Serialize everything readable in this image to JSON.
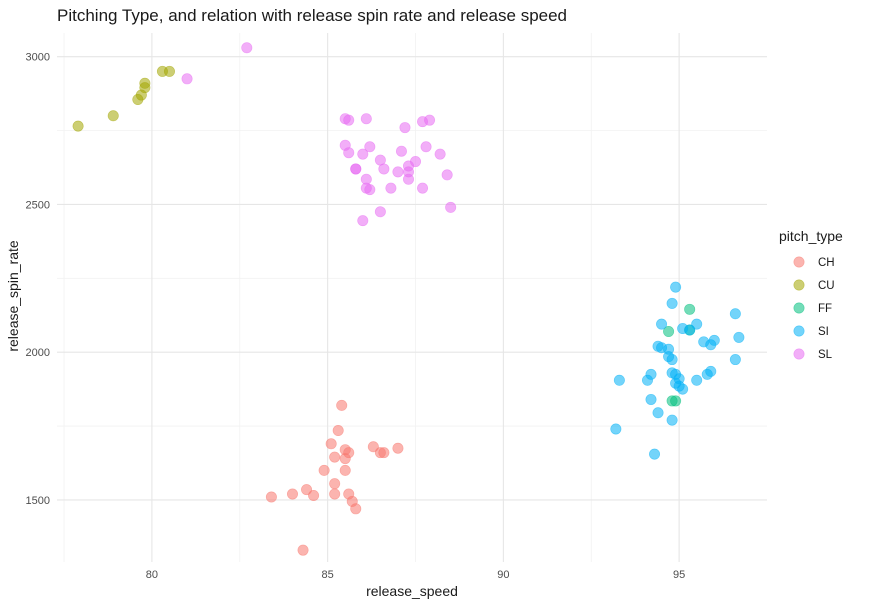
{
  "chart_data": {
    "type": "scatter",
    "title": "Pitching Type, and relation with release spin rate and release speed",
    "xlabel": "release_speed",
    "ylabel": "release_spin_rate",
    "xlim": [
      77.3,
      97.5
    ],
    "ylim": [
      1290,
      3080
    ],
    "x_ticks": [
      80,
      85,
      90,
      95
    ],
    "y_ticks": [
      1500,
      2000,
      2500,
      3000
    ],
    "grid": true,
    "legend": {
      "title": "pitch_type",
      "position": "right"
    },
    "series": [
      {
        "name": "CH",
        "color": "#F8766D",
        "points": [
          [
            85.4,
            1820
          ],
          [
            85.3,
            1735
          ],
          [
            85.1,
            1690
          ],
          [
            85.5,
            1670
          ],
          [
            85.6,
            1660
          ],
          [
            85.2,
            1645
          ],
          [
            85.5,
            1640
          ],
          [
            85.5,
            1600
          ],
          [
            84.9,
            1600
          ],
          [
            86.3,
            1680
          ],
          [
            86.5,
            1660
          ],
          [
            86.6,
            1660
          ],
          [
            87.0,
            1675
          ],
          [
            85.2,
            1555
          ],
          [
            85.2,
            1520
          ],
          [
            85.6,
            1520
          ],
          [
            84.4,
            1535
          ],
          [
            84.6,
            1515
          ],
          [
            84.0,
            1520
          ],
          [
            83.4,
            1510
          ],
          [
            85.7,
            1495
          ],
          [
            85.8,
            1470
          ],
          [
            84.3,
            1330
          ]
        ]
      },
      {
        "name": "CU",
        "color": "#A3A500",
        "points": [
          [
            77.9,
            2765
          ],
          [
            78.9,
            2800
          ],
          [
            79.6,
            2855
          ],
          [
            79.7,
            2870
          ],
          [
            79.8,
            2895
          ],
          [
            79.8,
            2910
          ],
          [
            80.3,
            2950
          ],
          [
            80.5,
            2950
          ]
        ]
      },
      {
        "name": "FF",
        "color": "#00BF7D",
        "points": [
          [
            95.3,
            2145
          ],
          [
            95.3,
            2075
          ],
          [
            94.7,
            2070
          ],
          [
            94.9,
            1835
          ],
          [
            94.8,
            1835
          ]
        ]
      },
      {
        "name": "SI",
        "color": "#00B0F6",
        "points": [
          [
            94.9,
            2220
          ],
          [
            94.8,
            2165
          ],
          [
            94.5,
            2095
          ],
          [
            95.1,
            2080
          ],
          [
            95.3,
            2075
          ],
          [
            95.5,
            2095
          ],
          [
            95.7,
            2035
          ],
          [
            96.0,
            2040
          ],
          [
            96.6,
            2130
          ],
          [
            96.7,
            2050
          ],
          [
            96.6,
            1975
          ],
          [
            95.9,
            2025
          ],
          [
            95.9,
            1935
          ],
          [
            95.8,
            1925
          ],
          [
            94.4,
            2020
          ],
          [
            94.5,
            2015
          ],
          [
            94.7,
            2010
          ],
          [
            94.7,
            1985
          ],
          [
            94.8,
            1975
          ],
          [
            94.2,
            1925
          ],
          [
            94.8,
            1930
          ],
          [
            94.9,
            1925
          ],
          [
            95.0,
            1910
          ],
          [
            94.9,
            1895
          ],
          [
            95.0,
            1885
          ],
          [
            95.1,
            1875
          ],
          [
            95.5,
            1905
          ],
          [
            94.1,
            1905
          ],
          [
            93.3,
            1905
          ],
          [
            94.2,
            1840
          ],
          [
            94.4,
            1795
          ],
          [
            94.8,
            1770
          ],
          [
            93.2,
            1740
          ],
          [
            94.3,
            1655
          ]
        ]
      },
      {
        "name": "SL",
        "color": "#E76BF3",
        "points": [
          [
            82.7,
            3030
          ],
          [
            81.0,
            2925
          ],
          [
            85.5,
            2790
          ],
          [
            85.6,
            2785
          ],
          [
            86.1,
            2790
          ],
          [
            87.7,
            2780
          ],
          [
            87.9,
            2785
          ],
          [
            87.2,
            2760
          ],
          [
            85.5,
            2700
          ],
          [
            86.2,
            2695
          ],
          [
            87.8,
            2695
          ],
          [
            85.6,
            2675
          ],
          [
            86.0,
            2670
          ],
          [
            87.1,
            2680
          ],
          [
            88.2,
            2670
          ],
          [
            86.5,
            2650
          ],
          [
            87.5,
            2645
          ],
          [
            87.3,
            2630
          ],
          [
            85.8,
            2620
          ],
          [
            85.8,
            2620
          ],
          [
            86.6,
            2620
          ],
          [
            87.0,
            2610
          ],
          [
            87.3,
            2610
          ],
          [
            88.4,
            2600
          ],
          [
            86.1,
            2585
          ],
          [
            87.3,
            2585
          ],
          [
            86.1,
            2555
          ],
          [
            86.2,
            2550
          ],
          [
            86.8,
            2555
          ],
          [
            87.7,
            2555
          ],
          [
            86.5,
            2475
          ],
          [
            88.5,
            2490
          ],
          [
            86.0,
            2445
          ]
        ]
      }
    ]
  }
}
